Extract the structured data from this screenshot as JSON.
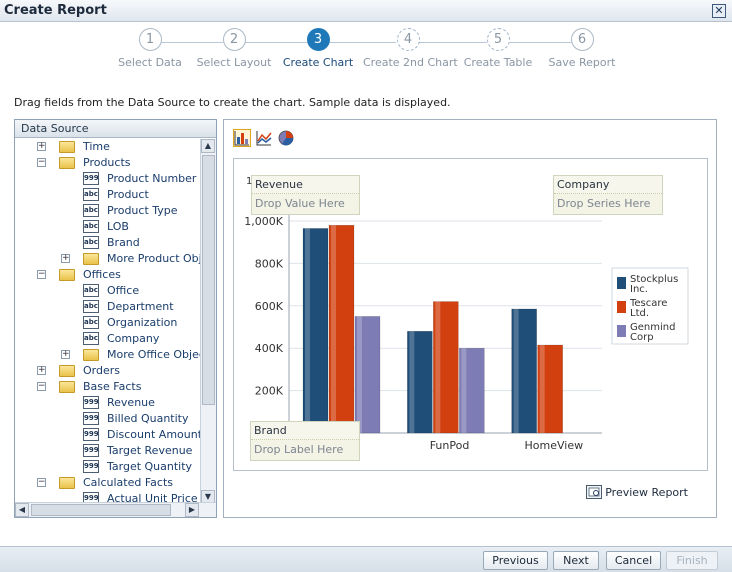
{
  "window": {
    "title": "Create Report",
    "close_label": "✕"
  },
  "steps": [
    {
      "num": "1",
      "label": "Select Data",
      "state": "done"
    },
    {
      "num": "2",
      "label": "Select Layout",
      "state": "done"
    },
    {
      "num": "3",
      "label": "Create Chart",
      "state": "active"
    },
    {
      "num": "4",
      "label": "Create 2nd Chart",
      "state": "optional"
    },
    {
      "num": "5",
      "label": "Create Table",
      "state": "optional"
    },
    {
      "num": "6",
      "label": "Save Report",
      "state": "todo"
    }
  ],
  "instruction": "Drag fields from the Data Source to create the chart. Sample data is displayed.",
  "data_source": {
    "header": "Data Source",
    "tree": [
      {
        "label": "Time",
        "type": "folder",
        "level": 0,
        "expander": "+"
      },
      {
        "label": "Products",
        "type": "folder",
        "level": 0,
        "expander": "-"
      },
      {
        "label": "Product Number",
        "type": "number",
        "level": 1
      },
      {
        "label": "Product",
        "type": "text",
        "level": 1
      },
      {
        "label": "Product Type",
        "type": "text",
        "level": 1
      },
      {
        "label": "LOB",
        "type": "text",
        "level": 1
      },
      {
        "label": "Brand",
        "type": "text",
        "level": 1
      },
      {
        "label": "More Product Objects",
        "type": "folder",
        "level": 1,
        "expander": "+"
      },
      {
        "label": "Offices",
        "type": "folder",
        "level": 0,
        "expander": "-"
      },
      {
        "label": "Office",
        "type": "text",
        "level": 1
      },
      {
        "label": "Department",
        "type": "text",
        "level": 1
      },
      {
        "label": "Organization",
        "type": "text",
        "level": 1
      },
      {
        "label": "Company",
        "type": "text",
        "level": 1
      },
      {
        "label": "More Office Objects",
        "type": "folder",
        "level": 1,
        "expander": "+"
      },
      {
        "label": "Orders",
        "type": "folder",
        "level": 0,
        "expander": "+"
      },
      {
        "label": "Base Facts",
        "type": "folder",
        "level": 0,
        "expander": "-"
      },
      {
        "label": "Revenue",
        "type": "number",
        "level": 1
      },
      {
        "label": "Billed Quantity",
        "type": "number",
        "level": 1
      },
      {
        "label": "Discount Amount",
        "type": "number",
        "level": 1
      },
      {
        "label": "Target Revenue",
        "type": "number",
        "level": 1
      },
      {
        "label": "Target Quantity",
        "type": "number",
        "level": 1
      },
      {
        "label": "Calculated Facts",
        "type": "folder",
        "level": 0,
        "expander": "-"
      },
      {
        "label": "Actual Unit Price",
        "type": "number",
        "level": 1
      }
    ],
    "icon_text": {
      "number": "999",
      "text": "abc"
    }
  },
  "chart_types": [
    {
      "name": "bar-chart-type",
      "icon": "bar-chart-icon",
      "selected": true
    },
    {
      "name": "line-chart-type",
      "icon": "line-chart-icon",
      "selected": false
    },
    {
      "name": "pie-chart-type",
      "icon": "pie-chart-icon",
      "selected": false
    }
  ],
  "drop_targets": {
    "value": {
      "title": "Revenue",
      "hint": "Drop Value Here",
      "marker": "1"
    },
    "series": {
      "title": "Company",
      "hint": "Drop Series Here"
    },
    "label": {
      "title": "Brand",
      "hint": "Drop Label Here"
    }
  },
  "preview_label": "Preview Report",
  "chart_data": {
    "type": "bar",
    "categories": [
      "",
      "FunPod",
      "HomeView"
    ],
    "series": [
      {
        "name": "Stockplus Inc.",
        "legend_lines": [
          "Stockplus",
          "Inc."
        ],
        "color": "#1f4e79",
        "values": [
          965000,
          480000,
          585000
        ]
      },
      {
        "name": "Tescare Ltd.",
        "legend_lines": [
          "Tescare",
          "Ltd."
        ],
        "color": "#d24010",
        "values": [
          980000,
          620000,
          415000
        ]
      },
      {
        "name": "Genmind Corp",
        "legend_lines": [
          "Genmind",
          "Corp"
        ],
        "color": "#7e7cb4",
        "values": [
          550000,
          400000,
          null
        ]
      }
    ],
    "y_ticks": [
      200000,
      400000,
      600000,
      800000,
      1000000
    ],
    "y_tick_labels": [
      "200K",
      "400K",
      "600K",
      "800K",
      "1,000K"
    ],
    "ylim": [
      0,
      1000000
    ],
    "grid": true,
    "legend": "right"
  },
  "footer": {
    "previous": "Previous",
    "next": "Next",
    "cancel": "Cancel",
    "finish": "Finish"
  }
}
